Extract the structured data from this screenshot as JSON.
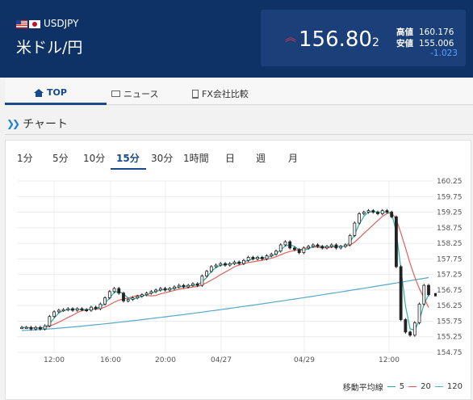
{
  "header": {
    "pair_code": "USDJPY",
    "pair_name": "米ドル/円",
    "flags": [
      "us-flag-icon",
      "jp-flag-icon"
    ],
    "price_main": "156.80",
    "price_small": "2",
    "high_label": "高値",
    "high_value": "160.176",
    "low_label": "安値",
    "low_value": "155.006",
    "change": "-1.023",
    "colors": {
      "background": "#0f3266",
      "box": "#1b3f79",
      "change": "#5ea0ff",
      "arrow": "#e0334a"
    }
  },
  "nav": {
    "items": [
      {
        "label": "TOP",
        "icon": "home-icon",
        "active": true
      },
      {
        "label": "ニュース",
        "icon": "news-icon",
        "active": false
      },
      {
        "label": "FX会社比較",
        "icon": "building-icon",
        "active": false
      }
    ]
  },
  "section": {
    "title": "チャート",
    "icon": "chevron-right-double-icon"
  },
  "tabs": [
    "1分",
    "5分",
    "10分",
    "15分",
    "30分",
    "1時間",
    "日",
    "週",
    "月"
  ],
  "active_tab": "15分",
  "legend": {
    "title": "移動平均線",
    "items": [
      {
        "label": "5",
        "color": "#26b3a6"
      },
      {
        "label": "20",
        "color": "#e0605a"
      },
      {
        "label": "120",
        "color": "#5aa8c8"
      }
    ]
  },
  "chart_data": {
    "type": "candlestick",
    "y_ticks": [
      "160.25",
      "159.75",
      "159.25",
      "158.75",
      "158.25",
      "157.75",
      "157.25",
      "156.75",
      "156.25",
      "155.75",
      "155.25",
      "154.75"
    ],
    "ylim": [
      154.75,
      160.25
    ],
    "x_ticks": [
      "12:00",
      "16:00",
      "20:00",
      "04/27",
      "04/29",
      "12:00"
    ],
    "grid": true,
    "ma_colors": {
      "ma5": "#26b3a6",
      "ma20": "#e0605a",
      "ma120": "#5aa8c8"
    },
    "close": [
      155.55,
      155.55,
      155.5,
      155.55,
      155.5,
      155.6,
      155.9,
      156.05,
      156.1,
      156.12,
      156.15,
      156.1,
      156.15,
      156.12,
      156.1,
      156.2,
      156.15,
      156.3,
      156.5,
      156.7,
      156.8,
      156.65,
      156.4,
      156.45,
      156.5,
      156.55,
      156.6,
      156.65,
      156.7,
      156.75,
      156.8,
      156.75,
      156.8,
      156.85,
      156.9,
      156.85,
      156.9,
      156.95,
      156.9,
      157.2,
      157.35,
      157.5,
      157.55,
      157.6,
      157.55,
      157.6,
      157.65,
      157.6,
      157.7,
      157.8,
      157.75,
      157.8,
      157.75,
      157.85,
      157.9,
      158.0,
      158.2,
      158.3,
      158.1,
      158.05,
      157.95,
      158.1,
      158.15,
      158.2,
      158.15,
      158.1,
      158.15,
      158.2,
      158.1,
      158.15,
      158.2,
      158.5,
      158.9,
      159.2,
      159.25,
      159.3,
      159.25,
      159.2,
      159.3,
      159.25,
      159.1,
      157.5,
      155.8,
      155.4,
      155.3,
      155.7,
      156.3,
      156.9,
      156.6
    ]
  }
}
